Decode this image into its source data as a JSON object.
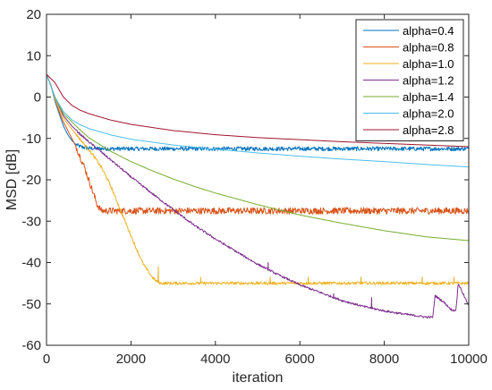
{
  "chart_data": {
    "type": "line",
    "title": "",
    "xlabel": "iteration",
    "ylabel": "MSD [dB]",
    "xlim": [
      0,
      10000
    ],
    "ylim": [
      -60,
      20
    ],
    "xticks": [
      0,
      2000,
      4000,
      6000,
      8000,
      10000
    ],
    "yticks": [
      -60,
      -50,
      -40,
      -30,
      -20,
      -10,
      0,
      10,
      20
    ],
    "grid": false,
    "legend_position": "top-right",
    "series": [
      {
        "name": "alpha=0.4",
        "color": "#0072BD",
        "x": [
          0,
          100,
          200,
          300,
          400,
          500,
          600,
          700,
          800,
          1000,
          1500,
          2000,
          3000,
          4000,
          5000,
          6000,
          7000,
          8000,
          9000,
          10000
        ],
        "y": [
          5.5,
          3,
          -1,
          -4,
          -7,
          -9,
          -10.5,
          -11.5,
          -12,
          -12.4,
          -12.5,
          -12.5,
          -12.5,
          -12.5,
          -12.5,
          -12.5,
          -12.5,
          -12.5,
          -12.5,
          -12.5
        ],
        "noise": 0.5
      },
      {
        "name": "alpha=0.8",
        "color": "#D95319",
        "x": [
          0,
          100,
          200,
          300,
          400,
          500,
          600,
          700,
          800,
          900,
          1000,
          1100,
          1200,
          1300,
          1500,
          2000,
          3000,
          4000,
          5000,
          6000,
          7000,
          8000,
          9000,
          10000
        ],
        "y": [
          5.5,
          3,
          -0.5,
          -3.5,
          -6,
          -8,
          -10,
          -12,
          -14.5,
          -17,
          -20,
          -23,
          -26,
          -27.5,
          -27.5,
          -27.5,
          -27.5,
          -27.5,
          -27.5,
          -27.5,
          -27.5,
          -27.5,
          -27.5,
          -27.5
        ],
        "noise": 0.8
      },
      {
        "name": "alpha=1.0",
        "color": "#EDB120",
        "x": [
          0,
          100,
          200,
          300,
          400,
          500,
          700,
          900,
          1100,
          1300,
          1500,
          1700,
          1900,
          2100,
          2300,
          2500,
          2600,
          2700,
          3000,
          4000,
          5000,
          6000,
          7000,
          8000,
          9000,
          10000
        ],
        "y": [
          5.5,
          3,
          -0.5,
          -3,
          -5,
          -6.5,
          -9,
          -11.5,
          -14,
          -17,
          -21,
          -26,
          -31,
          -36,
          -40.5,
          -43.5,
          -44.5,
          -45,
          -45,
          -45,
          -45,
          -45,
          -45,
          -45,
          -45,
          -45
        ],
        "noise": 0.35,
        "spikes": [
          [
            2650,
            -41
          ],
          [
            3650,
            -43.5
          ],
          [
            5300,
            -43.5
          ],
          [
            6200,
            -43.5
          ],
          [
            7450,
            -43.5
          ],
          [
            8900,
            -43.5
          ],
          [
            9650,
            -43.5
          ]
        ]
      },
      {
        "name": "alpha=1.2",
        "color": "#7E2F8E",
        "x": [
          0,
          200,
          400,
          600,
          800,
          1000,
          1500,
          2000,
          2500,
          3000,
          3500,
          4000,
          4500,
          5000,
          5500,
          6000,
          6500,
          7000,
          7500,
          8000,
          8500,
          9000,
          9150,
          9200,
          9400,
          9600,
          9700,
          9750,
          10000
        ],
        "y": [
          5.5,
          0,
          -4.5,
          -7,
          -9,
          -10.8,
          -15,
          -19.3,
          -23.3,
          -27.2,
          -31,
          -34.3,
          -37.4,
          -40.4,
          -43,
          -45.4,
          -47.3,
          -49.2,
          -50.6,
          -51.7,
          -52.5,
          -53.2,
          -53.2,
          -48,
          -49.5,
          -51.5,
          -51.5,
          -45,
          -50.5
        ],
        "noise": 0.25,
        "spikes": [
          [
            5250,
            -40
          ],
          [
            6800,
            -47.5
          ],
          [
            7700,
            -48.5
          ]
        ]
      },
      {
        "name": "alpha=1.4",
        "color": "#77AC30",
        "x": [
          0,
          200,
          400,
          600,
          800,
          1000,
          1500,
          2000,
          2500,
          3000,
          3500,
          4000,
          5000,
          6000,
          7000,
          8000,
          9000,
          10000
        ],
        "y": [
          5.5,
          0,
          -4,
          -6,
          -8,
          -9.8,
          -13,
          -15.6,
          -17.8,
          -19.8,
          -21.6,
          -23.2,
          -26,
          -28.5,
          -30.5,
          -32.3,
          -33.8,
          -34.7
        ],
        "noise": 0
      },
      {
        "name": "alpha=2.0",
        "color": "#4DBEEE",
        "x": [
          0,
          200,
          400,
          600,
          800,
          1000,
          1500,
          2000,
          3000,
          4000,
          5000,
          6000,
          7000,
          8000,
          9000,
          10000
        ],
        "y": [
          5.5,
          0,
          -3.5,
          -5.5,
          -6.7,
          -7.6,
          -9.1,
          -10.2,
          -11.6,
          -12.6,
          -13.5,
          -14.3,
          -15,
          -15.6,
          -16.3,
          -16.9
        ],
        "noise": 0
      },
      {
        "name": "alpha=2.8",
        "color": "#A2142F",
        "x": [
          0,
          200,
          400,
          600,
          800,
          1000,
          1500,
          2000,
          3000,
          4000,
          5000,
          6000,
          7000,
          8000,
          9000,
          10000
        ],
        "y": [
          5.5,
          3.5,
          0,
          -2,
          -3.2,
          -4,
          -5.5,
          -6.6,
          -8.1,
          -9.1,
          -9.8,
          -10.3,
          -10.8,
          -11.2,
          -11.6,
          -12
        ],
        "noise": 0
      }
    ]
  }
}
